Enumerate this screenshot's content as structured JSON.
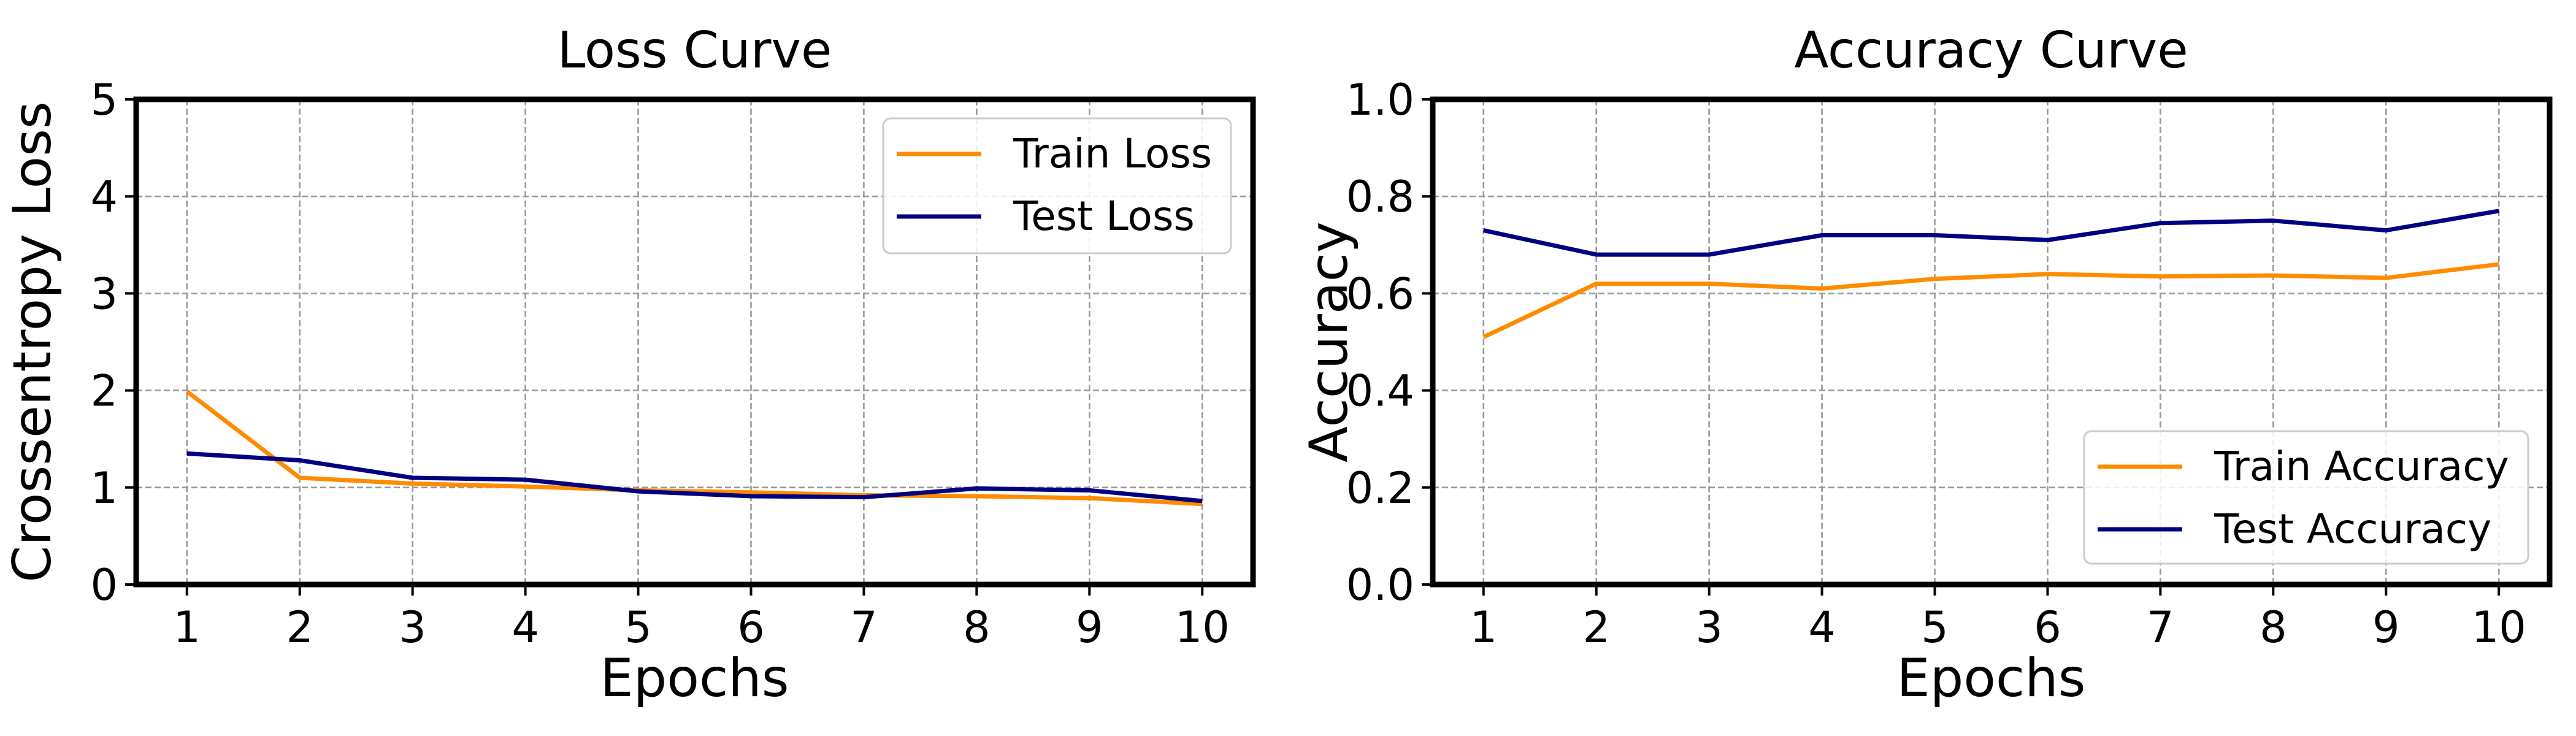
{
  "chart_data": [
    {
      "type": "line",
      "title": "Loss Curve",
      "xlabel": "Epochs",
      "ylabel": "Crossentropy Loss",
      "x": [
        1,
        2,
        3,
        4,
        5,
        6,
        7,
        8,
        9,
        10
      ],
      "xlim": [
        0.55,
        10.45
      ],
      "ylim": [
        0,
        5
      ],
      "yticks": [
        "0",
        "1",
        "2",
        "3",
        "4",
        "5"
      ],
      "grid": true,
      "legend_position": "top-right",
      "series": [
        {
          "name": "Train Loss",
          "color": "#ff8c00",
          "values": [
            1.99,
            1.1,
            1.04,
            1.01,
            0.97,
            0.95,
            0.92,
            0.91,
            0.89,
            0.83
          ]
        },
        {
          "name": "Test Loss",
          "color": "#000080",
          "values": [
            1.35,
            1.28,
            1.1,
            1.08,
            0.96,
            0.91,
            0.9,
            0.99,
            0.97,
            0.86
          ]
        }
      ]
    },
    {
      "type": "line",
      "title": "Accuracy Curve",
      "xlabel": "Epochs",
      "ylabel": "Accuracy",
      "x": [
        1,
        2,
        3,
        4,
        5,
        6,
        7,
        8,
        9,
        10
      ],
      "xlim": [
        0.55,
        10.45
      ],
      "ylim": [
        0,
        1
      ],
      "yticks": [
        "0.0",
        "0.2",
        "0.4",
        "0.6",
        "0.8",
        "1.0"
      ],
      "grid": true,
      "legend_position": "bottom-right",
      "series": [
        {
          "name": "Train Accuracy",
          "color": "#ff8c00",
          "values": [
            0.51,
            0.62,
            0.62,
            0.61,
            0.63,
            0.64,
            0.635,
            0.637,
            0.632,
            0.66
          ]
        },
        {
          "name": "Test Accuracy",
          "color": "#000080",
          "values": [
            0.73,
            0.68,
            0.68,
            0.72,
            0.72,
            0.71,
            0.745,
            0.75,
            0.73,
            0.77
          ]
        }
      ]
    }
  ]
}
